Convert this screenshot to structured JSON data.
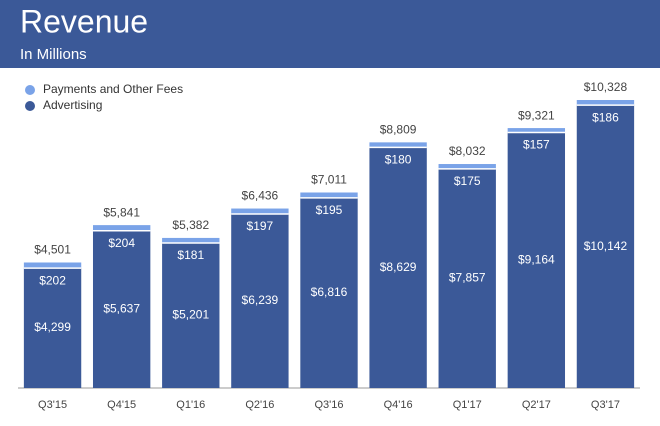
{
  "chart_data": {
    "type": "stacked-bar",
    "title": "Revenue",
    "subtitle": "In Millions",
    "categories": [
      "Q3'15",
      "Q4'15",
      "Q1'16",
      "Q2'16",
      "Q3'16",
      "Q4'16",
      "Q1'17",
      "Q2'17",
      "Q3'17"
    ],
    "series": [
      {
        "name": "Advertising",
        "color": "#3b5998",
        "values": [
          4299,
          5637,
          5201,
          6239,
          6816,
          8629,
          7857,
          9164,
          10142
        ],
        "value_labels": [
          "$4,299",
          "$5,637",
          "$5,201",
          "$6,239",
          "$6,816",
          "$8,629",
          "$7,857",
          "$9,164",
          "$10,142"
        ]
      },
      {
        "name": "Payments and Other Fees",
        "color": "#7aa3e8",
        "values": [
          202,
          204,
          181,
          197,
          195,
          180,
          175,
          157,
          186
        ],
        "value_labels": [
          "$202",
          "$204",
          "$181",
          "$197",
          "$195",
          "$180",
          "$175",
          "$157",
          "$186"
        ]
      }
    ],
    "totals": [
      4501,
      5841,
      5382,
      6436,
      7011,
      8809,
      8032,
      9321,
      10328
    ],
    "total_labels": [
      "$4,501",
      "$5,841",
      "$5,382",
      "$6,436",
      "$7,011",
      "$8,809",
      "$8,032",
      "$9,321",
      "$10,328"
    ],
    "legend": "top-left"
  }
}
